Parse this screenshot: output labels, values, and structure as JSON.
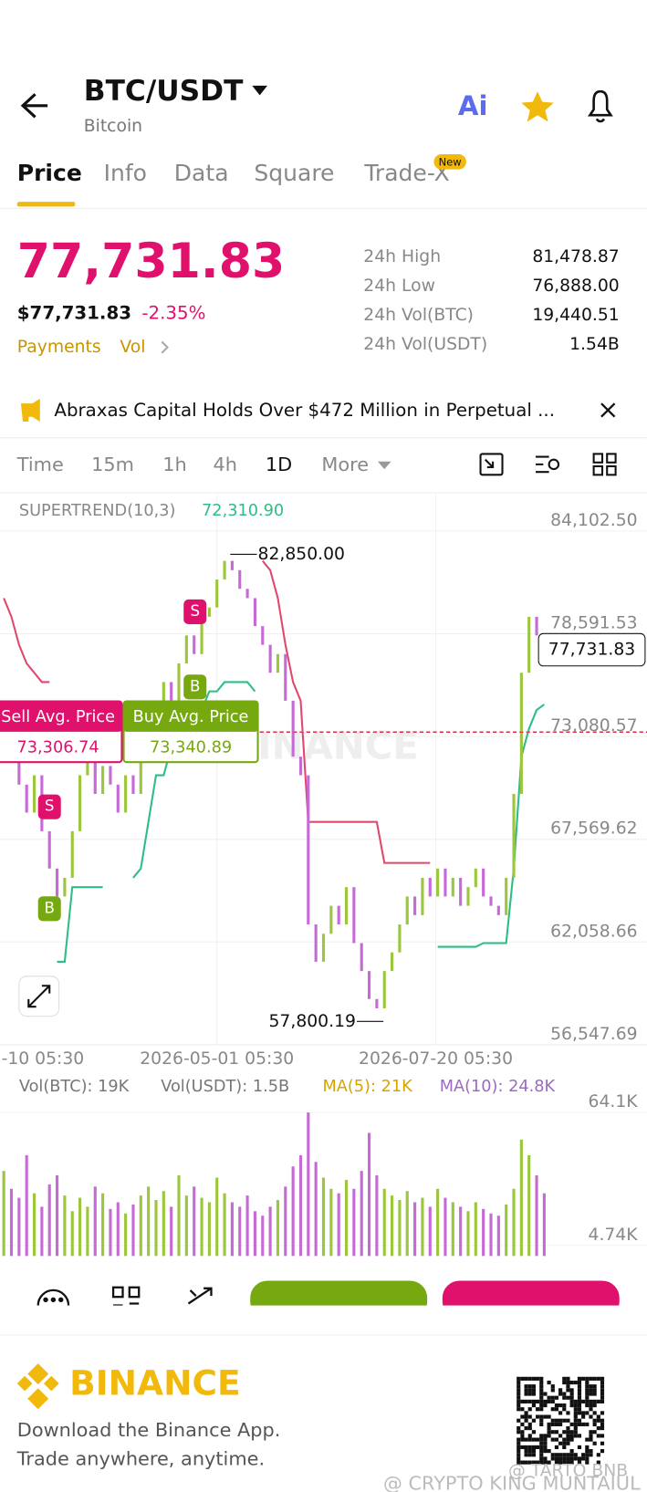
{
  "header": {
    "pair": "BTC/USDT",
    "name": "Bitcoin",
    "ai": "Ai"
  },
  "tabs": [
    "Price",
    "Info",
    "Data",
    "Square",
    "Trade-X"
  ],
  "tab_badge": "New",
  "price": {
    "last": "77,731.83",
    "usd": "$77,731.83",
    "change": "-2.35%",
    "links": [
      "Payments",
      "Vol"
    ]
  },
  "stats": [
    {
      "label": "24h High",
      "value": "81,478.87"
    },
    {
      "label": "24h Low",
      "value": "76,888.00"
    },
    {
      "label": "24h Vol(BTC)",
      "value": "19,440.51"
    },
    {
      "label": "24h Vol(USDT)",
      "value": "1.54B"
    }
  ],
  "news": "Abraxas Capital Holds Over $472 Million in Perpetual ...",
  "timeframes": [
    "Time",
    "15m",
    "1h",
    "4h",
    "1D",
    "More"
  ],
  "chart_data": [
    {
      "type": "candlestick",
      "indicator": "SUPERTREND(10,3)",
      "indicator_value": "72,310.90",
      "ylim": [
        56547.69,
        86041.5
      ],
      "yticks": [
        {
          "value": 84102.5,
          "label": "84,102.50"
        },
        {
          "value": 78591.53,
          "label": "78,591.53"
        },
        {
          "value": 73080.57,
          "label": "73,080.57"
        },
        {
          "value": 67569.62,
          "label": "67,569.62"
        },
        {
          "value": 62058.66,
          "label": "62,058.66"
        },
        {
          "value": 56547.69,
          "label": "56,547.69"
        }
      ],
      "x_labels": [
        "-10 05:30",
        "2026-05-01 05:30",
        "2026-07-20 05:30"
      ],
      "closes": [
        74500,
        73000,
        70500,
        69000,
        71000,
        68000,
        66000,
        64500,
        65500,
        68000,
        71000,
        72500,
        70000,
        71500,
        70500,
        69000,
        71000,
        70000,
        72000,
        73500,
        74000,
        76000,
        75000,
        77000,
        78500,
        77500,
        79500,
        80000,
        81500,
        82500,
        82000,
        81000,
        80500,
        79000,
        78000,
        76500,
        77500,
        75000,
        72000,
        71000,
        63000,
        61000,
        62500,
        64000,
        63000,
        65000,
        62000,
        60500,
        59000,
        58500,
        60500,
        61500,
        63000,
        64500,
        63500,
        65500,
        64500,
        66000,
        64500,
        65500,
        64000,
        65000,
        66000,
        64500,
        64000,
        63500,
        65500,
        70000,
        76500,
        79500,
        78500,
        77731.83
      ],
      "supertrend_upper": [
        80500,
        79500,
        78000,
        77000,
        76500,
        76000,
        76000,
        null,
        null,
        null,
        null,
        null,
        null,
        null,
        73500,
        73500,
        73500,
        null,
        null,
        null,
        null,
        null,
        null,
        null,
        null,
        null,
        null,
        null,
        null,
        null,
        null,
        null,
        null,
        null,
        82500,
        82000,
        80500,
        78000,
        76000,
        75000,
        68500,
        68500,
        68500,
        68500,
        68500,
        68500,
        68500,
        68500,
        68500,
        68500,
        66300,
        66300,
        66300,
        66300,
        66300,
        66300,
        66300,
        null,
        null,
        null,
        null,
        null,
        null,
        null,
        null,
        null,
        null,
        null,
        null,
        null,
        null,
        null
      ],
      "supertrend_lower": [
        null,
        null,
        null,
        null,
        null,
        null,
        null,
        61000,
        61000,
        65000,
        65000,
        65000,
        65000,
        65000,
        null,
        null,
        null,
        65500,
        66000,
        68500,
        71000,
        71000,
        72500,
        72500,
        73500,
        74500,
        74500,
        75500,
        75500,
        76000,
        76000,
        76000,
        76000,
        75500,
        null,
        null,
        null,
        null,
        null,
        null,
        null,
        null,
        null,
        null,
        null,
        null,
        null,
        null,
        null,
        null,
        null,
        null,
        null,
        null,
        null,
        null,
        null,
        61800,
        61800,
        61800,
        61800,
        61800,
        61800,
        62000,
        62000,
        62000,
        62000,
        66000,
        72000,
        73500,
        74500,
        74800
      ],
      "high": {
        "value": 82850,
        "label": "82,850.00"
      },
      "low": {
        "value": 57800.19,
        "label": "57,800.19"
      },
      "last": {
        "value": 77731.83,
        "label": "77,731.83"
      },
      "sell_avg": {
        "name": "Sell Avg. Price",
        "value": 73306.74,
        "label": "73,306.74"
      },
      "buy_avg": {
        "name": "Buy Avg. Price",
        "value": 73340.89,
        "label": "73,340.89"
      },
      "signals": [
        "S",
        "B",
        "S",
        "B"
      ],
      "watermark": "BINANCE"
    },
    {
      "type": "bar",
      "stats": [
        "Vol(BTC): 19K",
        "Vol(USDT): 1.5B",
        "MA(5): 21K",
        "MA(10): 24.8K"
      ],
      "ylim": [
        0,
        68000
      ],
      "yticks": [
        {
          "value": 64100,
          "label": "64.1K"
        },
        {
          "value": 4740,
          "label": "4.74K"
        }
      ],
      "values": [
        38000,
        30000,
        26000,
        45000,
        28000,
        22000,
        32000,
        36000,
        27000,
        20000,
        26000,
        22000,
        31000,
        28000,
        21000,
        24000,
        19000,
        23000,
        27000,
        31000,
        25000,
        29000,
        22000,
        36000,
        27000,
        31000,
        26000,
        24000,
        35000,
        28000,
        24000,
        22000,
        27000,
        20000,
        18000,
        22000,
        25000,
        31000,
        40000,
        45000,
        64100,
        42000,
        35000,
        30000,
        28000,
        34000,
        30000,
        38000,
        55000,
        36000,
        30000,
        27000,
        25000,
        29000,
        24000,
        26000,
        22000,
        30000,
        26000,
        24000,
        22000,
        20000,
        24000,
        21000,
        19000,
        18000,
        23000,
        30000,
        52000,
        45000,
        36000,
        28000
      ]
    }
  ],
  "footer": {
    "brand": "BINANCE",
    "line1": "Download the Binance App.",
    "line2": "Trade anywhere, anytime."
  },
  "watermarks": [
    "@ TARTO BNB",
    "@ CRYPTO KING MUNTAIUL"
  ]
}
